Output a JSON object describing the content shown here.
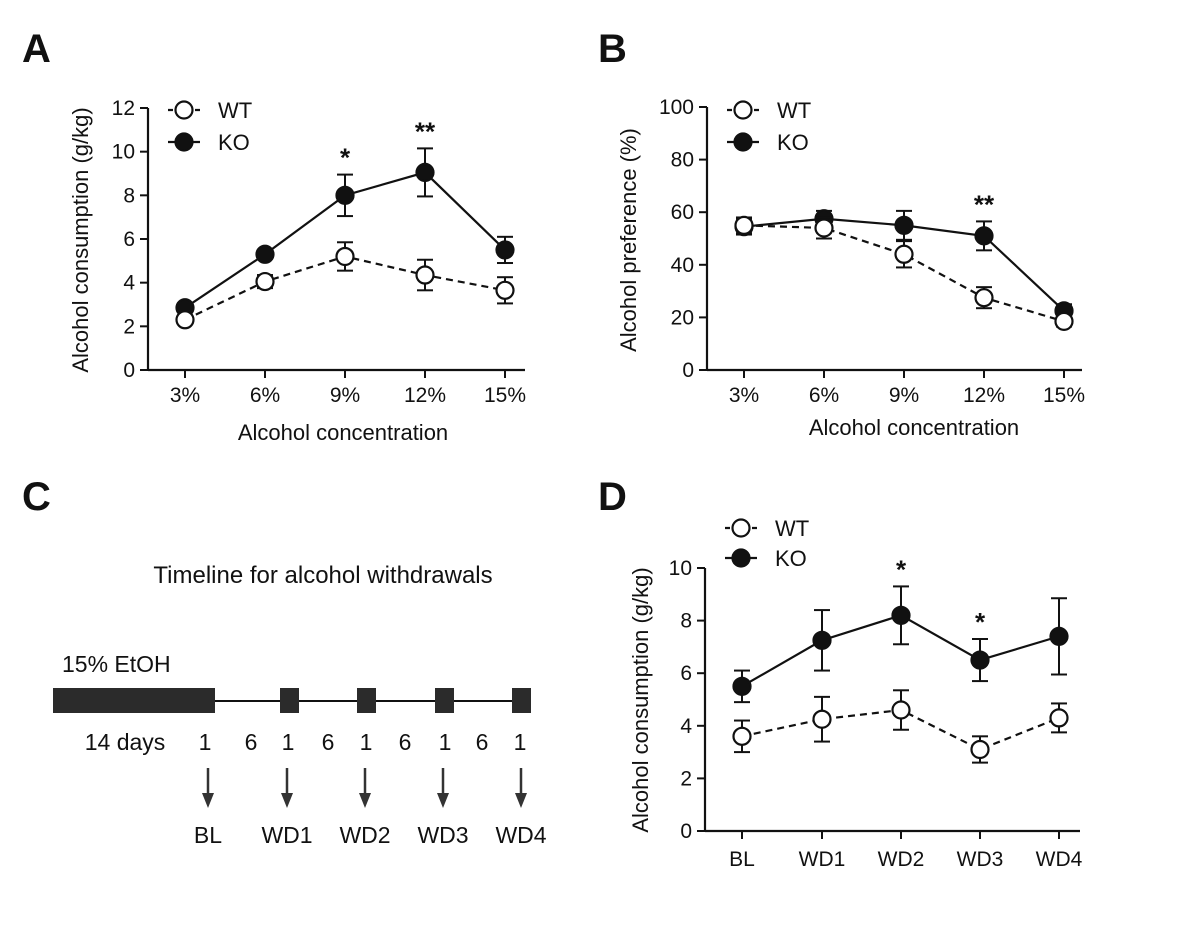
{
  "colors": {
    "ink": "#111111",
    "bar": "#2b2b2b",
    "wt_fill": "#ffffff",
    "ko_fill": "#111111"
  },
  "chart_data": [
    {
      "id": "A",
      "type": "line",
      "panel_label": "A",
      "xlabel": "Alcohol concentration",
      "ylabel": "Alcohol consumption (g/kg)",
      "ylim": [
        0,
        12
      ],
      "yticks": [
        0,
        2,
        4,
        6,
        8,
        10,
        12
      ],
      "categories": [
        "3%",
        "6%",
        "9%",
        "12%",
        "15%"
      ],
      "legend_position": "top-left",
      "series": [
        {
          "name": "WT",
          "style": "open-dashed",
          "values": [
            2.3,
            4.05,
            5.2,
            4.35,
            3.65
          ],
          "errors": [
            0.2,
            0.3,
            0.65,
            0.7,
            0.6
          ]
        },
        {
          "name": "KO",
          "style": "filled-solid",
          "values": [
            2.85,
            5.3,
            8.0,
            9.05,
            5.5
          ],
          "errors": [
            0.2,
            0.2,
            0.95,
            1.1,
            0.6
          ]
        }
      ],
      "significance": [
        {
          "index": 2,
          "label": "*"
        },
        {
          "index": 3,
          "label": "**"
        }
      ]
    },
    {
      "id": "B",
      "type": "line",
      "panel_label": "B",
      "xlabel": "Alcohol concentration",
      "ylabel": "Alcohol preference (%)",
      "ylim": [
        0,
        100
      ],
      "yticks": [
        0,
        20,
        40,
        60,
        80,
        100
      ],
      "categories": [
        "3%",
        "6%",
        "9%",
        "12%",
        "15%"
      ],
      "legend_position": "top-left",
      "series": [
        {
          "name": "WT",
          "style": "open-dashed",
          "values": [
            55,
            54,
            44,
            27.5,
            18.5
          ],
          "errors": [
            3,
            4,
            5,
            4,
            2
          ]
        },
        {
          "name": "KO",
          "style": "filled-solid",
          "values": [
            54.5,
            57.5,
            55,
            51,
            22.5
          ],
          "errors": [
            3,
            3,
            5.5,
            5.5,
            2.5
          ]
        }
      ],
      "significance": [
        {
          "index": 3,
          "label": "**"
        }
      ]
    },
    {
      "id": "D",
      "type": "line",
      "panel_label": "D",
      "xlabel": "",
      "ylabel": "Alcohol consumption (g/kg)",
      "ylim": [
        0,
        10
      ],
      "yticks": [
        0,
        2,
        4,
        6,
        8,
        10
      ],
      "categories": [
        "BL",
        "WD1",
        "WD2",
        "WD3",
        "WD4"
      ],
      "legend_position": "top-left",
      "series": [
        {
          "name": "WT",
          "style": "open-dashed",
          "values": [
            3.6,
            4.25,
            4.6,
            3.1,
            4.3
          ],
          "errors": [
            0.6,
            0.85,
            0.75,
            0.5,
            0.55
          ]
        },
        {
          "name": "KO",
          "style": "filled-solid",
          "values": [
            5.5,
            7.25,
            8.2,
            6.5,
            7.4
          ],
          "errors": [
            0.6,
            1.15,
            1.1,
            0.8,
            1.45
          ]
        }
      ],
      "significance": [
        {
          "index": 2,
          "label": "*"
        },
        {
          "index": 3,
          "label": "*"
        }
      ]
    }
  ],
  "timeline": {
    "panel_label": "C",
    "title": "Timeline for alcohol withdrawals",
    "bar_label": "15% EtOH",
    "durations": [
      "14 days",
      "1",
      "6",
      "1",
      "6",
      "1",
      "6",
      "1",
      "6",
      "1"
    ],
    "timepoints": [
      "BL",
      "WD1",
      "WD2",
      "WD3",
      "WD4"
    ]
  }
}
